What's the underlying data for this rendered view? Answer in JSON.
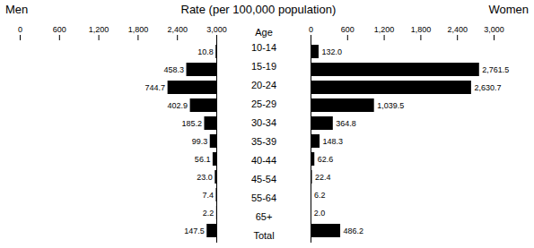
{
  "chart_data": {
    "type": "bar",
    "orientation": "horizontal",
    "title": "Rate (per 100,000 population)",
    "y_label": "Age",
    "categories": [
      "10-14",
      "15-19",
      "20-24",
      "25-29",
      "30-34",
      "35-39",
      "40-44",
      "45-54",
      "55-64",
      "65+",
      "Total"
    ],
    "xlim": [
      0,
      3000
    ],
    "data_labels": true,
    "series": [
      {
        "name": "Men",
        "color": "#000000",
        "values": [
          10.8,
          458.3,
          744.7,
          402.9,
          185.2,
          99.3,
          56.1,
          23.0,
          7.4,
          2.2,
          147.5
        ],
        "value_labels": [
          "10.8",
          "458.3",
          "744.7",
          "402.9",
          "185.2",
          "99.3",
          "56.1",
          "23.0",
          "7.4",
          "2.2",
          "147.5"
        ],
        "xticks": [
          {
            "value": 0,
            "label": "3,000"
          },
          {
            "value": 600,
            "label": "2,400"
          },
          {
            "value": 1200,
            "label": "1,800"
          },
          {
            "value": 1800,
            "label": "1,200"
          },
          {
            "value": 2400,
            "label": "600"
          },
          {
            "value": 3000,
            "label": "0"
          }
        ]
      },
      {
        "name": "Women",
        "color": "#000000",
        "values": [
          132.0,
          2761.5,
          2630.7,
          1039.5,
          364.8,
          148.3,
          62.6,
          22.4,
          6.2,
          2.0,
          486.2
        ],
        "value_labels": [
          "132.0",
          "2,761.5",
          "2,630.7",
          "1,039.5",
          "364.8",
          "148.3",
          "62.6",
          "22.4",
          "6.2",
          "2.0",
          "486.2"
        ],
        "xticks": [
          0,
          600,
          {
            "value": 1200,
            "label": "1,200"
          },
          {
            "value": 1800,
            "label": "1,800"
          },
          {
            "value": 2400,
            "label": "2,400"
          },
          {
            "value": 3000,
            "label": "3,000"
          }
        ]
      }
    ]
  }
}
